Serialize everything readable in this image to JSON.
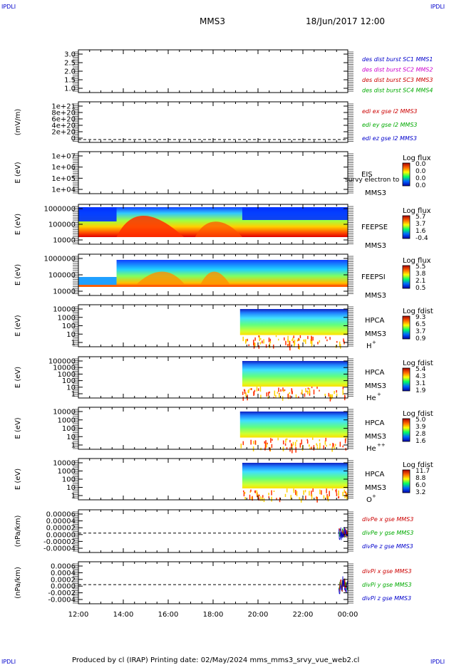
{
  "corners": {
    "tl": "IPDLI",
    "tr": "IPDLI",
    "bl": "IPDLI",
    "br": "IPDLI"
  },
  "header": {
    "title": "MMS3",
    "datetime": "18/Jun/2017 12:00"
  },
  "footer": {
    "text": "Produced by cl (IRAP)   Printing date: 02/May/2024   mms_mms3_srvy_vue_web2.cl"
  },
  "time_axis": {
    "ticks": [
      "12:00",
      "14:00",
      "16:00",
      "18:00",
      "20:00",
      "22:00",
      "00:00"
    ],
    "range_hours": [
      12,
      24
    ]
  },
  "chart_data": [
    {
      "type": "line",
      "panel": "des-dist",
      "ylabel": "",
      "yticks": [
        "3.0",
        "2.5",
        "2.0",
        "1.5",
        "1.0"
      ],
      "ylim": [
        0.8,
        3.2
      ],
      "legend": [
        {
          "text": "des dist burst SC1 MMS1",
          "color": "#0000cc"
        },
        {
          "text": "des dist burst SC2 MMS2",
          "color": "#cc00cc"
        },
        {
          "text": "des dist burst SC3 MMS3",
          "color": "#cc0000"
        },
        {
          "text": "des dist burst SC4 MMS4",
          "color": "#00aa00"
        }
      ],
      "series": []
    },
    {
      "type": "line",
      "panel": "edi-e",
      "ylabel": "(mV/m)",
      "yticks": [
        "1e+21",
        "8e+20",
        "6e+20",
        "4e+20",
        "2e+20",
        "0"
      ],
      "legend": [
        {
          "text": "edi ex gse l2 MMS3",
          "color": "#cc0000"
        },
        {
          "text": "edi ey gse l2 MMS3",
          "color": "#00aa00"
        },
        {
          "text": "edi ez gse l2 MMS3",
          "color": "#0000cc"
        }
      ],
      "series": []
    },
    {
      "type": "heatmap",
      "panel": "eis",
      "ylabel": "E (eV)",
      "yticks": [
        "1e+07",
        "1e+06",
        "1e+05",
        "1e+04"
      ],
      "label": "EIS",
      "label2": "MMS3",
      "overlay": "survy electron to",
      "cbar_title": "Log flux",
      "cbar_ticks": [
        "0.0",
        "0.0",
        "0.0",
        "0.0"
      ],
      "data_span_hours": null
    },
    {
      "type": "heatmap",
      "panel": "feepse",
      "ylabel": "E (eV)",
      "yticks": [
        "1000000",
        "100000",
        "10000"
      ],
      "label": "FEEPSE",
      "label2": "MMS3",
      "cbar_title": "Log flux",
      "cbar_ticks": [
        "5.7",
        "3.7",
        "1.6",
        "-0.4"
      ],
      "data_span_hours": [
        12.0,
        24.0
      ]
    },
    {
      "type": "heatmap",
      "panel": "feepsi",
      "ylabel": "E (eV)",
      "yticks": [
        "1000000",
        "100000",
        "10000"
      ],
      "label": "FEEPSI",
      "label2": "MMS3",
      "cbar_title": "Log flux",
      "cbar_ticks": [
        "5.5",
        "3.8",
        "2.1",
        "0.5"
      ],
      "data_span_hours": [
        12.0,
        24.0
      ]
    },
    {
      "type": "heatmap",
      "panel": "hpca-h",
      "ylabel": "E (eV)",
      "yticks": [
        "10000",
        "1000",
        "100",
        "10",
        "1"
      ],
      "label": "HPCA",
      "label2": "MMS3",
      "species": "H",
      "charge": "+",
      "cbar_title": "Log fdist",
      "cbar_ticks": [
        "9.3",
        "6.5",
        "3.7",
        "0.9"
      ],
      "data_span_hours": [
        19.2,
        24.0
      ]
    },
    {
      "type": "heatmap",
      "panel": "hpca-he",
      "ylabel": "E (eV)",
      "yticks": [
        "100000",
        "10000",
        "1000",
        "100",
        "10",
        "1"
      ],
      "label": "HPCA",
      "label2": "MMS3",
      "species": "He",
      "charge": "+",
      "cbar_title": "Log fdist",
      "cbar_ticks": [
        "5.4",
        "4.3",
        "3.1",
        "1.9"
      ],
      "data_span_hours": [
        19.3,
        24.0
      ]
    },
    {
      "type": "heatmap",
      "panel": "hpca-hepp",
      "ylabel": "E (eV)",
      "yticks": [
        "10000",
        "1000",
        "100",
        "10",
        "1"
      ],
      "label": "HPCA",
      "label2": "MMS3",
      "species": "He",
      "charge": "++",
      "cbar_title": "Log fdist",
      "cbar_ticks": [
        "5.0",
        "3.9",
        "2.8",
        "1.6"
      ],
      "data_span_hours": [
        19.2,
        24.0
      ]
    },
    {
      "type": "heatmap",
      "panel": "hpca-o",
      "ylabel": "E (eV)",
      "yticks": [
        "10000",
        "1000",
        "100",
        "10",
        "1"
      ],
      "label": "HPCA",
      "label2": "MMS3",
      "species": "O",
      "charge": "+",
      "cbar_title": "Log fdist",
      "cbar_ticks": [
        "11.7",
        "8.8",
        "6.0",
        "3.2"
      ],
      "data_span_hours": [
        19.3,
        24.0
      ]
    },
    {
      "type": "line",
      "panel": "divpe",
      "ylabel": "(nPa/km)",
      "yticks": [
        "0.00006",
        "0.00004",
        "0.00002",
        "0.00000",
        "-0.00002",
        "-0.00004"
      ],
      "ylim": [
        -5e-05,
        6e-05
      ],
      "legend": [
        {
          "text": "divPe x gse MMS3",
          "color": "#cc0000"
        },
        {
          "text": "divPe y gse MMS3",
          "color": "#00aa00"
        },
        {
          "text": "divPe z gse MMS3",
          "color": "#0000cc"
        }
      ],
      "data_span_hours": [
        23.6,
        24.0
      ],
      "amplitude": 2e-05
    },
    {
      "type": "line",
      "panel": "divpi",
      "ylabel": "(nPa/km)",
      "yticks": [
        "0.0006",
        "0.0004",
        "0.0002",
        "0.0000",
        "-0.0002",
        "-0.0004"
      ],
      "ylim": [
        -0.0005,
        0.0006
      ],
      "legend": [
        {
          "text": "divPi x gse MMS3",
          "color": "#cc0000"
        },
        {
          "text": "divPi y gse MMS3",
          "color": "#00aa00"
        },
        {
          "text": "divPi z gse MMS3",
          "color": "#0000cc"
        }
      ],
      "data_span_hours": [
        23.6,
        24.0
      ],
      "amplitude": 0.0003
    }
  ]
}
